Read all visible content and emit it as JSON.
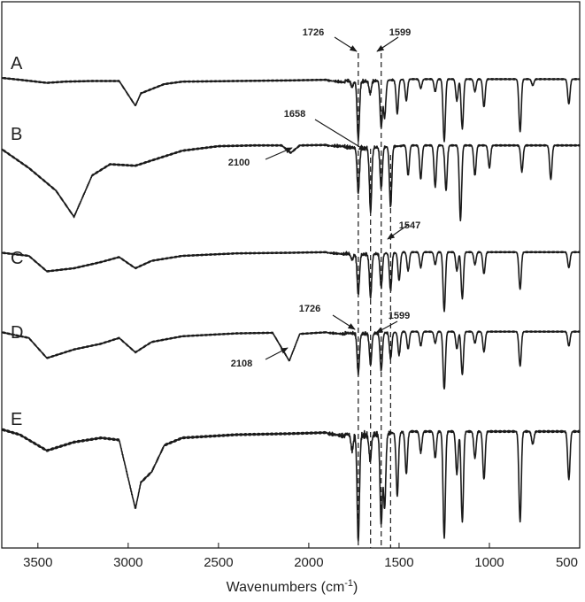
{
  "chart_data": {
    "type": "line",
    "title": "",
    "xlabel": "Wavenumbers (cm",
    "xlabel_sup": "-1",
    "xlabel_end": ")",
    "ylabel": "",
    "xlim": [
      3700,
      500
    ],
    "x_ticks": [
      3500,
      3000,
      2500,
      2000,
      1500,
      1000,
      500
    ],
    "grid": false,
    "legend": "none",
    "series": [
      {
        "name": "A",
        "baseline": 0.02,
        "shape": [
          [
            3700,
            0.0
          ],
          [
            3600,
            0.03
          ],
          [
            3450,
            0.08
          ],
          [
            3350,
            0.06
          ],
          [
            3200,
            0.05
          ],
          [
            3050,
            0.05
          ],
          [
            2960,
            0.45
          ],
          [
            2930,
            0.25
          ],
          [
            2870,
            0.18
          ],
          [
            2800,
            0.1
          ],
          [
            2700,
            0.06
          ],
          [
            2400,
            0.05
          ],
          [
            2100,
            0.04
          ],
          [
            1900,
            0.03
          ],
          [
            1800,
            0.05
          ]
        ],
        "bands": [
          [
            1760,
            0.1
          ],
          [
            1726,
            0.95
          ],
          [
            1660,
            0.2
          ],
          [
            1599,
            0.75
          ],
          [
            1580,
            0.6
          ],
          [
            1510,
            0.55
          ],
          [
            1460,
            0.35
          ],
          [
            1380,
            0.15
          ],
          [
            1300,
            0.2
          ],
          [
            1250,
            1.0
          ],
          [
            1180,
            0.35
          ],
          [
            1150,
            0.8
          ],
          [
            1080,
            0.2
          ],
          [
            1030,
            0.45
          ],
          [
            830,
            0.85
          ],
          [
            760,
            0.1
          ],
          [
            560,
            0.4
          ]
        ]
      },
      {
        "name": "B",
        "baseline": 0.05,
        "shape": [
          [
            3700,
            0.1
          ],
          [
            3550,
            0.35
          ],
          [
            3400,
            0.65
          ],
          [
            3300,
            1.0
          ],
          [
            3200,
            0.45
          ],
          [
            3100,
            0.3
          ],
          [
            2960,
            0.32
          ],
          [
            2870,
            0.25
          ],
          [
            2700,
            0.12
          ],
          [
            2500,
            0.06
          ],
          [
            2300,
            0.05
          ],
          [
            2150,
            0.05
          ],
          [
            2100,
            0.15
          ],
          [
            2050,
            0.05
          ],
          [
            1800,
            0.04
          ]
        ],
        "bands": [
          [
            1726,
            0.6
          ],
          [
            1658,
            0.85
          ],
          [
            1599,
            0.55
          ],
          [
            1547,
            0.8
          ],
          [
            1450,
            0.4
          ],
          [
            1380,
            0.45
          ],
          [
            1300,
            0.55
          ],
          [
            1240,
            0.6
          ],
          [
            1160,
            1.0
          ],
          [
            1080,
            0.4
          ],
          [
            1000,
            0.3
          ],
          [
            820,
            0.35
          ],
          [
            660,
            0.45
          ]
        ]
      },
      {
        "name": "C",
        "baseline": 0.04,
        "shape": [
          [
            3700,
            0.05
          ],
          [
            3550,
            0.1
          ],
          [
            3450,
            0.35
          ],
          [
            3300,
            0.3
          ],
          [
            3150,
            0.2
          ],
          [
            3050,
            0.12
          ],
          [
            2960,
            0.3
          ],
          [
            2870,
            0.18
          ],
          [
            2700,
            0.1
          ],
          [
            2400,
            0.06
          ],
          [
            2100,
            0.05
          ],
          [
            1900,
            0.04
          ],
          [
            1800,
            0.05
          ]
        ],
        "bands": [
          [
            1760,
            0.1
          ],
          [
            1726,
            0.65
          ],
          [
            1658,
            0.7
          ],
          [
            1599,
            0.55
          ],
          [
            1547,
            0.6
          ],
          [
            1500,
            0.45
          ],
          [
            1450,
            0.3
          ],
          [
            1380,
            0.25
          ],
          [
            1300,
            0.2
          ],
          [
            1250,
            0.95
          ],
          [
            1180,
            0.3
          ],
          [
            1150,
            0.75
          ],
          [
            1080,
            0.2
          ],
          [
            1030,
            0.35
          ],
          [
            830,
            0.6
          ],
          [
            560,
            0.25
          ]
        ]
      },
      {
        "name": "D",
        "baseline": 0.04,
        "shape": [
          [
            3700,
            0.05
          ],
          [
            3550,
            0.15
          ],
          [
            3450,
            0.5
          ],
          [
            3300,
            0.35
          ],
          [
            3150,
            0.25
          ],
          [
            3050,
            0.15
          ],
          [
            2960,
            0.4
          ],
          [
            2870,
            0.22
          ],
          [
            2700,
            0.12
          ],
          [
            2400,
            0.07
          ],
          [
            2200,
            0.06
          ],
          [
            2108,
            0.55
          ],
          [
            2050,
            0.08
          ],
          [
            1900,
            0.05
          ],
          [
            1800,
            0.06
          ]
        ],
        "bands": [
          [
            1726,
            0.7
          ],
          [
            1658,
            0.55
          ],
          [
            1599,
            0.65
          ],
          [
            1547,
            0.45
          ],
          [
            1500,
            0.4
          ],
          [
            1450,
            0.3
          ],
          [
            1380,
            0.25
          ],
          [
            1300,
            0.2
          ],
          [
            1250,
            1.0
          ],
          [
            1180,
            0.3
          ],
          [
            1150,
            0.75
          ],
          [
            1080,
            0.2
          ],
          [
            1030,
            0.35
          ],
          [
            830,
            0.6
          ],
          [
            560,
            0.25
          ]
        ]
      },
      {
        "name": "E",
        "baseline": 0.02,
        "shape": [
          [
            3700,
            0.0
          ],
          [
            3600,
            0.05
          ],
          [
            3450,
            0.2
          ],
          [
            3300,
            0.12
          ],
          [
            3150,
            0.08
          ],
          [
            3050,
            0.1
          ],
          [
            2960,
            0.75
          ],
          [
            2930,
            0.5
          ],
          [
            2870,
            0.4
          ],
          [
            2800,
            0.15
          ],
          [
            2700,
            0.08
          ],
          [
            2400,
            0.05
          ],
          [
            2100,
            0.04
          ],
          [
            1900,
            0.03
          ],
          [
            1800,
            0.04
          ]
        ],
        "bands": [
          [
            1760,
            0.15
          ],
          [
            1726,
            1.0
          ],
          [
            1660,
            0.25
          ],
          [
            1599,
            0.85
          ],
          [
            1580,
            0.7
          ],
          [
            1510,
            0.6
          ],
          [
            1460,
            0.4
          ],
          [
            1380,
            0.2
          ],
          [
            1300,
            0.25
          ],
          [
            1250,
            1.0
          ],
          [
            1180,
            0.4
          ],
          [
            1150,
            0.85
          ],
          [
            1080,
            0.25
          ],
          [
            1030,
            0.45
          ],
          [
            830,
            0.85
          ],
          [
            760,
            0.12
          ],
          [
            560,
            0.45
          ]
        ]
      }
    ],
    "reference_lines": [
      1726,
      1658,
      1599,
      1547
    ],
    "annotations": [
      {
        "text": "1726",
        "x": 1726,
        "series": "A"
      },
      {
        "text": "1599",
        "x": 1599,
        "series": "A"
      },
      {
        "text": "1658",
        "x": 1658,
        "series": "B"
      },
      {
        "text": "2100",
        "x": 2100,
        "series": "B"
      },
      {
        "text": "1547",
        "x": 1547,
        "series": "C"
      },
      {
        "text": "1726",
        "x": 1726,
        "series": "D"
      },
      {
        "text": "1599",
        "x": 1599,
        "series": "D"
      },
      {
        "text": "2108",
        "x": 2108,
        "series": "D"
      }
    ]
  }
}
